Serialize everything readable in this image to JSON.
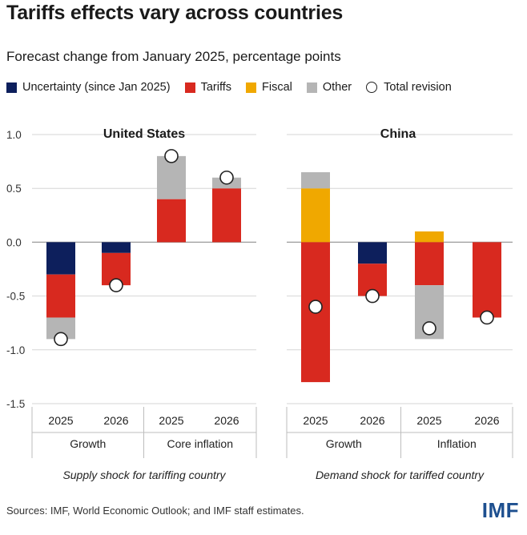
{
  "title": "Tariffs effects vary across countries",
  "subtitle": "Forecast change from January 2025, percentage points",
  "legend": [
    {
      "name": "Uncertainty (since Jan 2025)",
      "color": "#0d1f5c",
      "kind": "box"
    },
    {
      "name": "Tariffs",
      "color": "#d8291f",
      "kind": "box"
    },
    {
      "name": "Fiscal",
      "color": "#f0a800",
      "kind": "box"
    },
    {
      "name": "Other",
      "color": "#b5b5b5",
      "kind": "box"
    },
    {
      "name": "Total revision",
      "color": "#ffffff",
      "kind": "circle"
    }
  ],
  "source": "Sources: IMF, World Economic Outlook; and IMF staff estimates.",
  "logo": "IMF",
  "chart_data": {
    "type": "bar",
    "stacked": true,
    "ylim": [
      -1.5,
      1.0
    ],
    "yticks": [
      "1.0",
      "0.5",
      "0.0",
      "-0.5",
      "-1.0",
      "-1.5"
    ],
    "ytick_values": [
      1.0,
      0.5,
      0.0,
      -0.5,
      -1.0,
      -1.5
    ],
    "panels": [
      {
        "title": "United States",
        "caption": "Supply shock for tariffing country",
        "groups": [
          "Growth",
          "Core inflation"
        ],
        "bars": [
          {
            "year": "2025",
            "group": "Growth",
            "segments": [
              {
                "series": "Uncertainty (since Jan 2025)",
                "value": -0.3
              },
              {
                "series": "Tariffs",
                "value": -0.4
              },
              {
                "series": "Other",
                "value": -0.2
              }
            ],
            "total": -0.9
          },
          {
            "year": "2026",
            "group": "Growth",
            "segments": [
              {
                "series": "Uncertainty (since Jan 2025)",
                "value": -0.1
              },
              {
                "series": "Tariffs",
                "value": -0.3
              }
            ],
            "total": -0.4
          },
          {
            "year": "2025",
            "group": "Core inflation",
            "segments": [
              {
                "series": "Tariffs",
                "value": 0.4
              },
              {
                "series": "Other",
                "value": 0.4
              }
            ],
            "total": 0.8
          },
          {
            "year": "2026",
            "group": "Core inflation",
            "segments": [
              {
                "series": "Tariffs",
                "value": 0.5
              },
              {
                "series": "Other",
                "value": 0.1
              }
            ],
            "total": 0.6
          }
        ]
      },
      {
        "title": "China",
        "caption": "Demand shock for tariffed country",
        "groups": [
          "Growth",
          "Inflation"
        ],
        "bars": [
          {
            "year": "2025",
            "group": "Growth",
            "segments": [
              {
                "series": "Fiscal",
                "value": 0.5
              },
              {
                "series": "Other",
                "value": 0.15
              },
              {
                "series": "Tariffs",
                "value": -1.3
              }
            ],
            "total": -0.6
          },
          {
            "year": "2026",
            "group": "Growth",
            "segments": [
              {
                "series": "Uncertainty (since Jan 2025)",
                "value": -0.2
              },
              {
                "series": "Tariffs",
                "value": -0.3
              }
            ],
            "total": -0.5
          },
          {
            "year": "2025",
            "group": "Inflation",
            "segments": [
              {
                "series": "Fiscal",
                "value": 0.1
              },
              {
                "series": "Tariffs",
                "value": -0.4
              },
              {
                "series": "Other",
                "value": -0.5
              }
            ],
            "total": -0.8
          },
          {
            "year": "2026",
            "group": "Inflation",
            "segments": [
              {
                "series": "Tariffs",
                "value": -0.7
              }
            ],
            "total": -0.7
          }
        ]
      }
    ]
  }
}
